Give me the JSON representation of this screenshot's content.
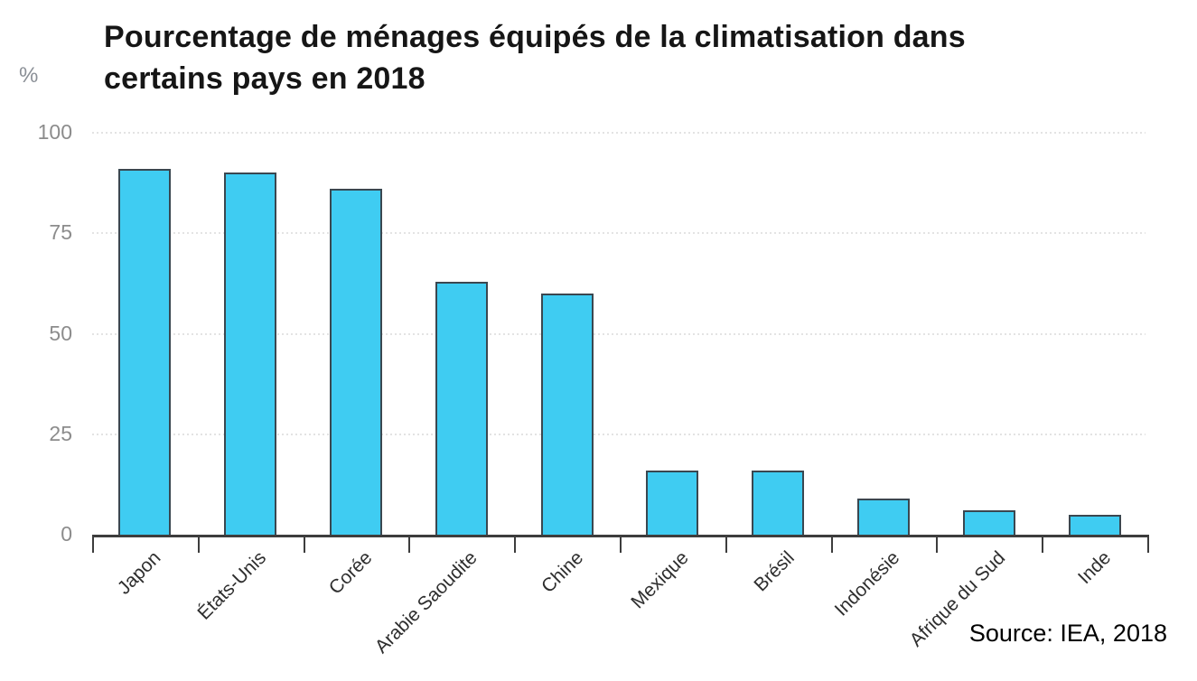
{
  "header": {
    "title_line1": "Pourcentage de ménages équipés de la climatisation dans",
    "title_line2": "certains pays en 2018",
    "unit_label": "%"
  },
  "footer": {
    "source": "Source: IEA, 2018"
  },
  "colors": {
    "bar_fill": "#3fccf2",
    "bar_border": "#3a4750",
    "axis": "#3d3d3d",
    "gridline": "#e3e3e3",
    "ytick_label": "#8c8c8c",
    "category_label": "#2e2e2e",
    "title": "#161616",
    "background": "#ffffff"
  },
  "chart_data": {
    "type": "bar",
    "title": "Pourcentage de ménages équipés de la climatisation dans certains pays en 2018",
    "categories": [
      "Japon",
      "États-Unis",
      "Corée",
      "Arabie Saoudite",
      "Chine",
      "Mexique",
      "Brésil",
      "Indonésie",
      "Afrique du Sud",
      "Inde"
    ],
    "values": [
      91,
      90,
      86,
      63,
      60,
      16,
      16,
      9,
      6,
      5
    ],
    "xlabel": "",
    "ylabel": "%",
    "ylim": [
      0,
      100
    ],
    "yticks": [
      0,
      25,
      50,
      75,
      100
    ],
    "grid": true,
    "legend": "none",
    "source": "Source: IEA, 2018"
  }
}
